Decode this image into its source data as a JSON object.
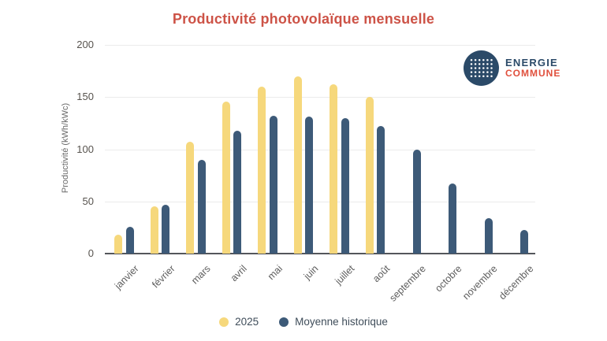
{
  "chart_data": {
    "type": "bar",
    "title": "Productivité photovolaïque mensuelle",
    "title_color": "#cd5347",
    "ylabel": "Productivité (kWh/kWc)",
    "categories": [
      "janvier",
      "février",
      "mars",
      "avril",
      "mai",
      "juin",
      "juillet",
      "août",
      "septembre",
      "octobre",
      "novembre",
      "décembre"
    ],
    "series": [
      {
        "name": "2025",
        "color": "#f6d87c",
        "values": [
          18,
          45,
          107,
          146,
          160,
          170,
          162,
          150,
          null,
          null,
          null,
          null
        ]
      },
      {
        "name": "Moyenne historique",
        "color": "#3d5a78",
        "values": [
          26,
          47,
          90,
          118,
          132,
          131,
          130,
          122,
          100,
          67,
          34,
          23
        ]
      }
    ],
    "ylim": [
      0,
      200
    ],
    "yticks": [
      0,
      50,
      100,
      150,
      200
    ],
    "grid": true,
    "legend_position": "bottom"
  },
  "logo": {
    "line1": "ENERGIE",
    "line2": "COMMUNE",
    "circle_color": "#2b4a68",
    "line1_color": "#2b4a68",
    "line2_color": "#e0503d"
  }
}
